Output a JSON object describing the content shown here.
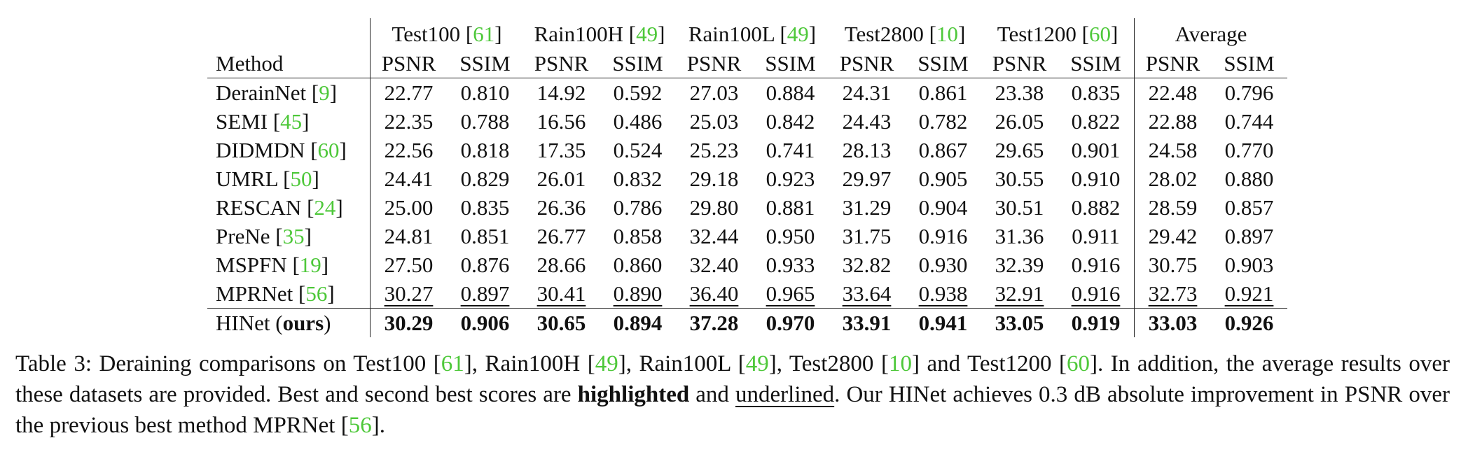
{
  "table": {
    "method_header": "Method",
    "datasets": [
      {
        "name": "Test100",
        "ref": "61"
      },
      {
        "name": "Rain100H",
        "ref": "49"
      },
      {
        "name": "Rain100L",
        "ref": "49"
      },
      {
        "name": "Test2800",
        "ref": "10"
      },
      {
        "name": "Test1200",
        "ref": "60"
      },
      {
        "name": "Average",
        "ref": ""
      }
    ],
    "metrics": [
      "PSNR",
      "SSIM"
    ],
    "rows": [
      {
        "method": "DerainNet",
        "ref": "9",
        "values": [
          "22.77",
          "0.810",
          "14.92",
          "0.592",
          "27.03",
          "0.884",
          "24.31",
          "0.861",
          "23.38",
          "0.835",
          "22.48",
          "0.796"
        ]
      },
      {
        "method": "SEMI",
        "ref": "45",
        "values": [
          "22.35",
          "0.788",
          "16.56",
          "0.486",
          "25.03",
          "0.842",
          "24.43",
          "0.782",
          "26.05",
          "0.822",
          "22.88",
          "0.744"
        ]
      },
      {
        "method": "DIDMDN",
        "ref": "60",
        "values": [
          "22.56",
          "0.818",
          "17.35",
          "0.524",
          "25.23",
          "0.741",
          "28.13",
          "0.867",
          "29.65",
          "0.901",
          "24.58",
          "0.770"
        ]
      },
      {
        "method": "UMRL",
        "ref": "50",
        "values": [
          "24.41",
          "0.829",
          "26.01",
          "0.832",
          "29.18",
          "0.923",
          "29.97",
          "0.905",
          "30.55",
          "0.910",
          "28.02",
          "0.880"
        ]
      },
      {
        "method": "RESCAN",
        "ref": "24",
        "values": [
          "25.00",
          "0.835",
          "26.36",
          "0.786",
          "29.80",
          "0.881",
          "31.29",
          "0.904",
          "30.51",
          "0.882",
          "28.59",
          "0.857"
        ]
      },
      {
        "method": "PreNe",
        "ref": "35",
        "values": [
          "24.81",
          "0.851",
          "26.77",
          "0.858",
          "32.44",
          "0.950",
          "31.75",
          "0.916",
          "31.36",
          "0.911",
          "29.42",
          "0.897"
        ]
      },
      {
        "method": "MSPFN",
        "ref": "19",
        "values": [
          "27.50",
          "0.876",
          "28.66",
          "0.860",
          "32.40",
          "0.933",
          "32.82",
          "0.930",
          "32.39",
          "0.916",
          "30.75",
          "0.903"
        ]
      },
      {
        "method": "MPRNet",
        "ref": "56",
        "style": "underline",
        "values": [
          "30.27",
          "0.897",
          "30.41",
          "0.890",
          "36.40",
          "0.965",
          "33.64",
          "0.938",
          "32.91",
          "0.916",
          "32.73",
          "0.921"
        ]
      }
    ],
    "ours": {
      "method": "HINet",
      "suffix": "ours",
      "values": [
        "30.29",
        "0.906",
        "30.65",
        "0.894",
        "37.28",
        "0.970",
        "33.91",
        "0.941",
        "33.05",
        "0.919",
        "33.03",
        "0.926"
      ]
    }
  },
  "caption": {
    "label": "Table 3:",
    "s1": " Deraining comparisons on Test100 [",
    "r1": "61",
    "s2": "], Rain100H [",
    "r2": "49",
    "s3": "], Rain100L [",
    "r3": "49",
    "s4": "], Test2800 [",
    "r4": "10",
    "s5": "] and Test1200 [",
    "r5": "60",
    "s6": "].  In addition, the average results over these datasets are provided.  Best and second best scores are ",
    "bold_word": "highlighted",
    "s7": " and ",
    "underline_word": "underlined",
    "s8": ".  Our HINet achieves 0.3 dB absolute improvement in PSNR over the previous best method MPRNet [",
    "r6": "56",
    "s9": "]."
  }
}
